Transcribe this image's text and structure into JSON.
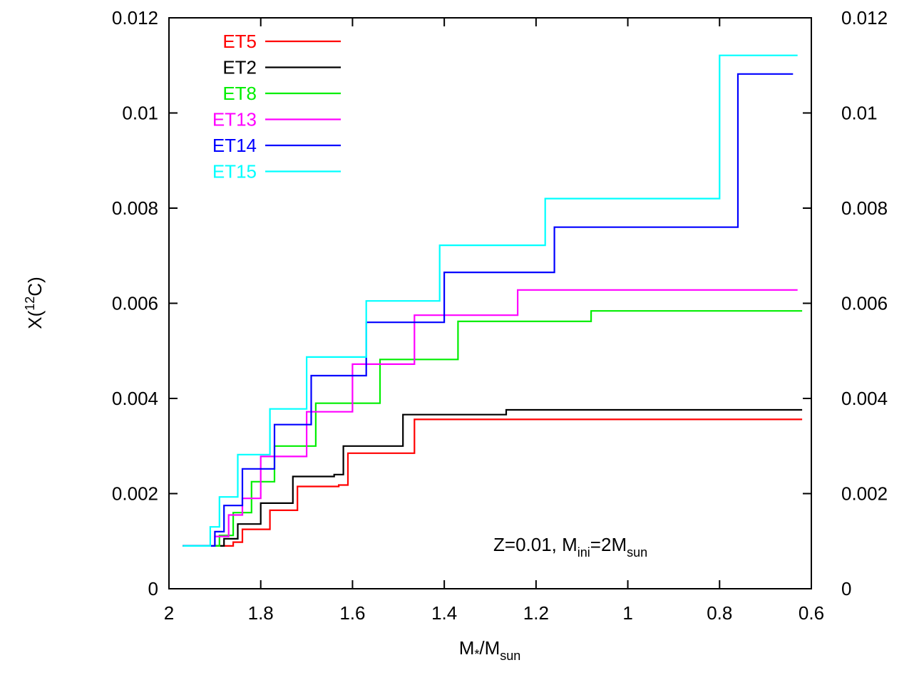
{
  "chart_data": {
    "type": "line",
    "step": true,
    "title": "",
    "xlabel": {
      "main": "M",
      "sub1": "*",
      "mid": "/M",
      "sub2": "sun"
    },
    "ylabel": {
      "main": "X(",
      "sup": "12",
      "end": "C)"
    },
    "xlim": [
      2,
      0.6
    ],
    "ylim": [
      0,
      0.012
    ],
    "x_reversed": true,
    "mirror_right_axis": true,
    "xticks": [
      2,
      1.8,
      1.6,
      1.4,
      1.2,
      1,
      0.8,
      0.6
    ],
    "xtick_labels": [
      "2",
      "1.8",
      "1.6",
      "1.4",
      "1.2",
      "1",
      "0.8",
      "0.6"
    ],
    "yticks": [
      0,
      0.002,
      0.004,
      0.006,
      0.008,
      0.01,
      0.012
    ],
    "ytick_labels": [
      "0",
      "0.002",
      "0.004",
      "0.006",
      "0.008",
      "0.01",
      "0.012"
    ],
    "grid": false,
    "legend_position": "top-left",
    "annotation": {
      "prefix": "Z=0.01, M",
      "sub1": "ini",
      "mid": "=2M",
      "sub2": "sun"
    },
    "series": [
      {
        "name": "ET5",
        "color": "#ff0000",
        "x": [
          1.97,
          1.89,
          1.86,
          1.84,
          1.78,
          1.72,
          1.63,
          1.61,
          1.47,
          1.465,
          0.62
        ],
        "y": [
          0.0009,
          0.0009,
          0.00098,
          0.00125,
          0.00165,
          0.00215,
          0.00218,
          0.00285,
          0.00285,
          0.00356,
          0.00356
        ]
      },
      {
        "name": "ET2",
        "color": "#000000",
        "x": [
          1.97,
          1.9,
          1.88,
          1.85,
          1.8,
          1.73,
          1.64,
          1.62,
          1.5,
          1.49,
          1.27,
          1.265,
          0.62
        ],
        "y": [
          0.0009,
          0.0009,
          0.00105,
          0.00136,
          0.0018,
          0.00236,
          0.0024,
          0.003,
          0.003,
          0.00366,
          0.00366,
          0.00376,
          0.00376
        ]
      },
      {
        "name": "ET8",
        "color": "#00ee00",
        "x": [
          1.97,
          1.91,
          1.89,
          1.86,
          1.82,
          1.77,
          1.72,
          1.68,
          1.62,
          1.6,
          1.56,
          1.54,
          1.39,
          1.37,
          1.09,
          1.08,
          0.62
        ],
        "y": [
          0.0009,
          0.0009,
          0.00112,
          0.0016,
          0.00225,
          0.003,
          0.003,
          0.0039,
          0.0039,
          0.0039,
          0.0039,
          0.00482,
          0.00482,
          0.00562,
          0.00562,
          0.00584,
          0.00584
        ]
      },
      {
        "name": "ET13",
        "color": "#ff00ff",
        "x": [
          1.97,
          1.92,
          1.9,
          1.87,
          1.84,
          1.8,
          1.75,
          1.7,
          1.67,
          1.62,
          1.6,
          1.5,
          1.465,
          1.25,
          1.24,
          0.63
        ],
        "y": [
          0.0009,
          0.0009,
          0.0011,
          0.00155,
          0.0019,
          0.00278,
          0.00278,
          0.00372,
          0.00372,
          0.00372,
          0.00472,
          0.00472,
          0.00575,
          0.00575,
          0.00628,
          0.00628
        ]
      },
      {
        "name": "ET14",
        "color": "#0000ff",
        "x": [
          1.97,
          1.92,
          1.9,
          1.88,
          1.84,
          1.8,
          1.77,
          1.71,
          1.69,
          1.59,
          1.57,
          1.42,
          1.4,
          1.17,
          1.16,
          0.77,
          0.76,
          0.64
        ],
        "y": [
          0.0009,
          0.0009,
          0.0012,
          0.00175,
          0.00252,
          0.00252,
          0.00345,
          0.00345,
          0.00448,
          0.00448,
          0.0056,
          0.0056,
          0.00665,
          0.00665,
          0.0076,
          0.0076,
          0.01082,
          0.01082
        ]
      },
      {
        "name": "ET15",
        "color": "#00ffff",
        "x": [
          1.97,
          1.92,
          1.91,
          1.89,
          1.85,
          1.81,
          1.78,
          1.72,
          1.7,
          1.6,
          1.57,
          1.43,
          1.41,
          1.19,
          1.18,
          0.81,
          0.8,
          0.63
        ],
        "y": [
          0.0009,
          0.0009,
          0.0013,
          0.00193,
          0.00282,
          0.00282,
          0.00378,
          0.00378,
          0.00487,
          0.00487,
          0.00605,
          0.00605,
          0.00722,
          0.00722,
          0.0082,
          0.0082,
          0.01121,
          0.01121
        ]
      }
    ]
  }
}
